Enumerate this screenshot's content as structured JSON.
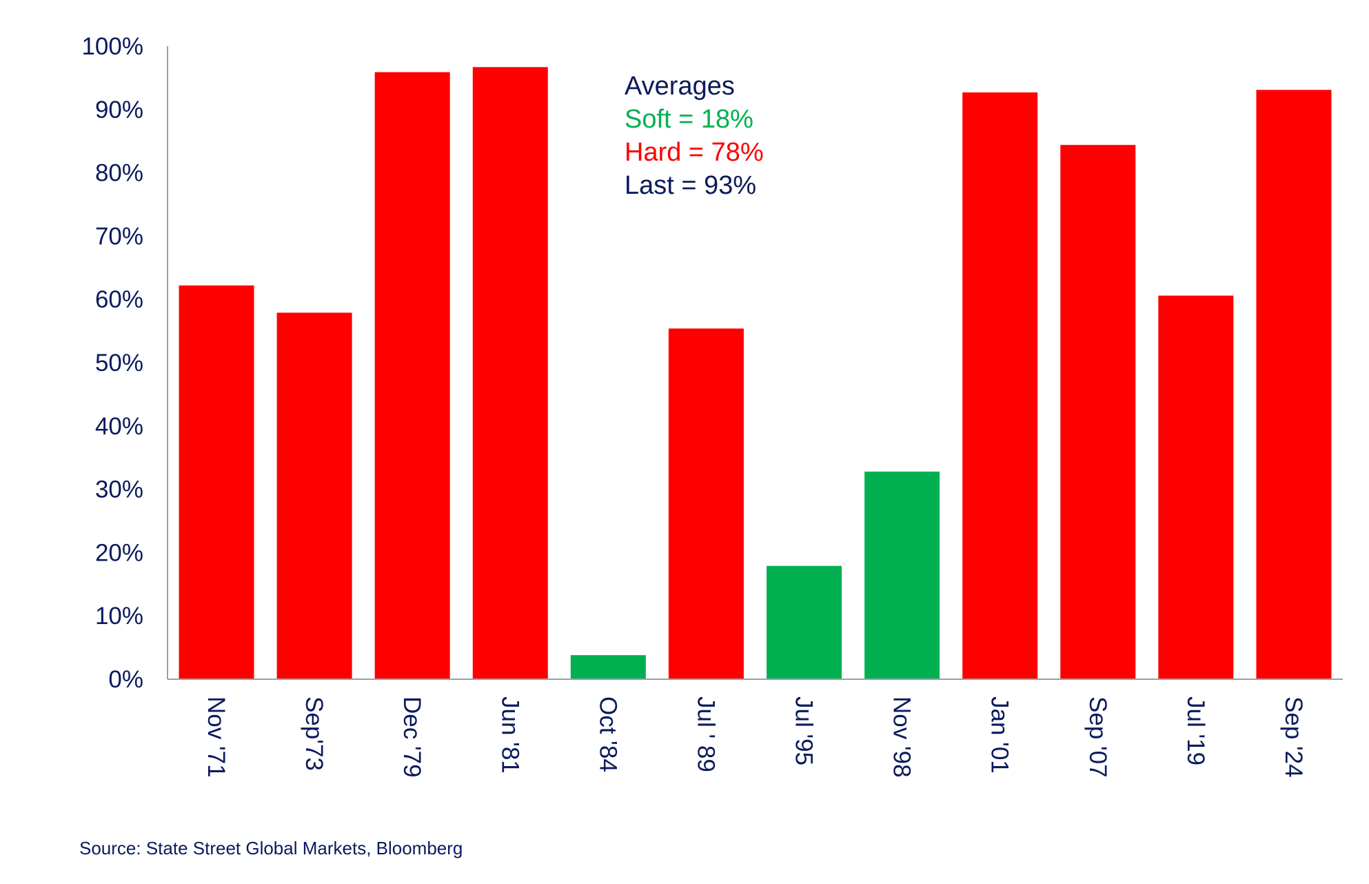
{
  "chart_data": {
    "type": "bar",
    "categories": [
      "Nov '71",
      "Sep'73",
      "Dec '79",
      "Jun '81",
      "Oct '84",
      "Jul ' 89",
      "Jul '95",
      "Nov '98",
      "Jan '01",
      "Sep '07",
      "Jul '19",
      "Sep '24"
    ],
    "values": [
      62.2,
      57.9,
      95.9,
      96.7,
      3.8,
      55.4,
      17.9,
      32.8,
      92.7,
      84.4,
      60.6,
      93.1
    ],
    "bar_types": [
      "hard",
      "hard",
      "hard",
      "hard",
      "soft",
      "hard",
      "soft",
      "soft",
      "hard",
      "hard",
      "hard",
      "hard"
    ],
    "ylim": [
      0,
      100
    ],
    "y_ticks": [
      0,
      10,
      20,
      30,
      40,
      50,
      60,
      70,
      80,
      90,
      100
    ],
    "y_tick_suffix": "%",
    "grid": false,
    "colors": {
      "hard": "#ff0000",
      "soft": "#00b050",
      "text": "#0b1a5c",
      "axis": "#9aa0a6"
    },
    "annotation": {
      "title": "Averages",
      "soft": "Soft = 18%",
      "hard": "Hard = 78%",
      "last": "Last = 93%"
    }
  },
  "source": "Source: State Street Global Markets, Bloomberg"
}
